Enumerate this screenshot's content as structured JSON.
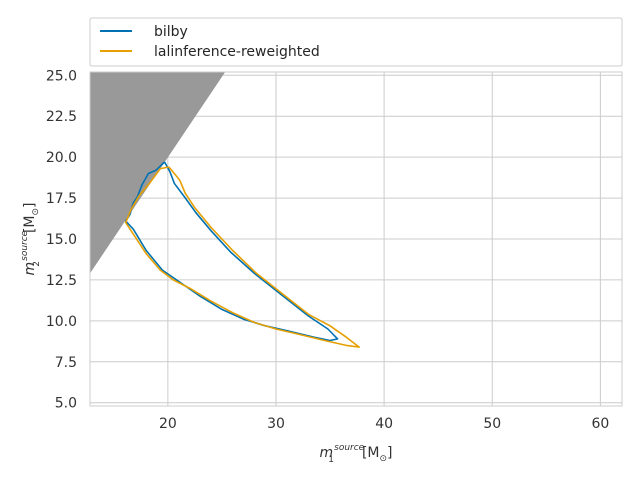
{
  "chart_data": {
    "type": "line",
    "xlabel": {
      "base": "m",
      "subscript": "1",
      "superscript": "source",
      "unit": "[M",
      "unit_sub": "⊙",
      "unit_close": "]"
    },
    "ylabel": {
      "base": "m",
      "subscript": "2",
      "superscript": "source",
      "unit": "[M",
      "unit_sub": "⊙",
      "unit_close": "]"
    },
    "xlim": [
      12.8,
      62.0
    ],
    "ylim": [
      4.8,
      25.2
    ],
    "xticks": [
      20,
      30,
      40,
      50,
      60
    ],
    "yticks": [
      5.0,
      7.5,
      10.0,
      12.5,
      15.0,
      17.5,
      20.0,
      22.5,
      25.0
    ],
    "xtick_labels": [
      "20",
      "30",
      "40",
      "50",
      "60"
    ],
    "ytick_labels": [
      "5.0",
      "7.5",
      "10.0",
      "12.5",
      "15.0",
      "17.5",
      "20.0",
      "22.5",
      "25.0"
    ],
    "grid": true,
    "legend_placement": "above plot, full width",
    "excluded_region": {
      "description": "m2 > m1",
      "color": "#999999",
      "polygon": [
        [
          12.8,
          12.9
        ],
        [
          12.8,
          25.2
        ],
        [
          25.3,
          25.2
        ]
      ]
    },
    "series": [
      {
        "name": "bilby",
        "color": "#0072b2",
        "points": [
          [
            19.7,
            19.7
          ],
          [
            20.2,
            19.1
          ],
          [
            20.6,
            18.4
          ],
          [
            21.5,
            17.6
          ],
          [
            22.6,
            16.6
          ],
          [
            24.0,
            15.5
          ],
          [
            25.8,
            14.2
          ],
          [
            28.0,
            12.9
          ],
          [
            30.5,
            11.6
          ],
          [
            33.0,
            10.3
          ],
          [
            34.8,
            9.5
          ],
          [
            35.7,
            8.9
          ],
          [
            35.0,
            8.8
          ],
          [
            33.5,
            9.0
          ],
          [
            31.0,
            9.4
          ],
          [
            29.0,
            9.7
          ],
          [
            27.0,
            10.1
          ],
          [
            25.0,
            10.7
          ],
          [
            23.0,
            11.5
          ],
          [
            20.8,
            12.5
          ],
          [
            19.5,
            13.1
          ],
          [
            18.0,
            14.3
          ],
          [
            16.8,
            15.6
          ],
          [
            16.1,
            16.1
          ],
          [
            16.5,
            16.5
          ],
          [
            16.8,
            17.2
          ],
          [
            17.2,
            17.6
          ],
          [
            17.6,
            18.3
          ],
          [
            18.2,
            19.0
          ],
          [
            18.9,
            19.2
          ],
          [
            19.7,
            19.7
          ]
        ]
      },
      {
        "name": "lalinference-reweighted",
        "color": "#e69f00",
        "points": [
          [
            20.1,
            19.4
          ],
          [
            20.6,
            19.0
          ],
          [
            21.1,
            18.6
          ],
          [
            21.6,
            17.8
          ],
          [
            22.5,
            16.9
          ],
          [
            24.0,
            15.7
          ],
          [
            26.0,
            14.3
          ],
          [
            28.2,
            12.9
          ],
          [
            30.7,
            11.6
          ],
          [
            33.0,
            10.4
          ],
          [
            35.0,
            9.7
          ],
          [
            36.5,
            9.0
          ],
          [
            37.7,
            8.4
          ],
          [
            36.5,
            8.5
          ],
          [
            34.5,
            8.8
          ],
          [
            32.0,
            9.2
          ],
          [
            30.0,
            9.5
          ],
          [
            28.0,
            9.9
          ],
          [
            26.0,
            10.5
          ],
          [
            24.0,
            11.2
          ],
          [
            22.0,
            12.0
          ],
          [
            20.5,
            12.5
          ],
          [
            19.3,
            13.1
          ],
          [
            18.0,
            14.1
          ],
          [
            16.8,
            15.3
          ],
          [
            16.1,
            16.0
          ],
          [
            16.6,
            16.8
          ],
          [
            17.3,
            17.6
          ],
          [
            18.3,
            18.4
          ],
          [
            19.3,
            19.3
          ],
          [
            20.1,
            19.4
          ]
        ]
      }
    ]
  }
}
